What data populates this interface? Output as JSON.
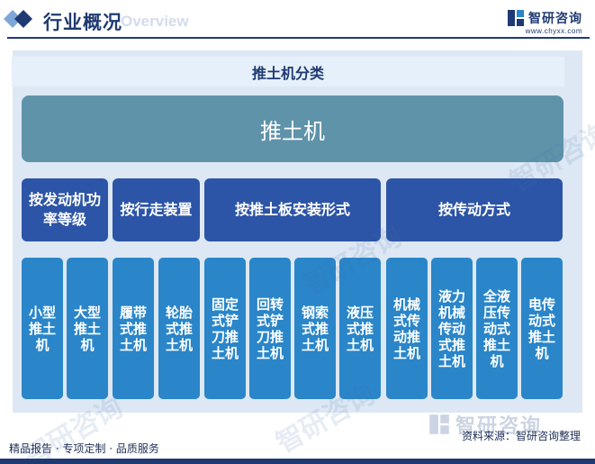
{
  "header": {
    "title": "行业概况",
    "subtitle": "Overview",
    "logo_name": "智研咨询",
    "logo_url": "www.chyxx.com"
  },
  "diagram": {
    "title": "推土机分类",
    "root": "推土机",
    "categories": [
      "按发动机功率等级",
      "按行走装置",
      "按推土板安装形式",
      "按传动方式"
    ],
    "leaves": [
      "小型推土机",
      "大型推土机",
      "履带式推土机",
      "轮胎式推土机",
      "固定式铲刀推土机",
      "回转式铲刀推土机",
      "钢索式推土机",
      "液压式推土机",
      "机械式传动推土机",
      "液力机械传动式推土机",
      "全液压传动式推土机",
      "电传动式推土机"
    ]
  },
  "watermark": {
    "text": "智研咨询"
  },
  "footer": {
    "left": "精品报告 · 专项定制 · 品质服务",
    "source": "资料来源：智研咨询整理"
  },
  "colors": {
    "navy": "#1f3a72",
    "root_bg": "#5f93aa",
    "category_bg": "#2d55a7",
    "leaf_bg": "#2a86c9",
    "panel_bg": "#dde8f4",
    "title_bg": "#e6f0fa"
  }
}
